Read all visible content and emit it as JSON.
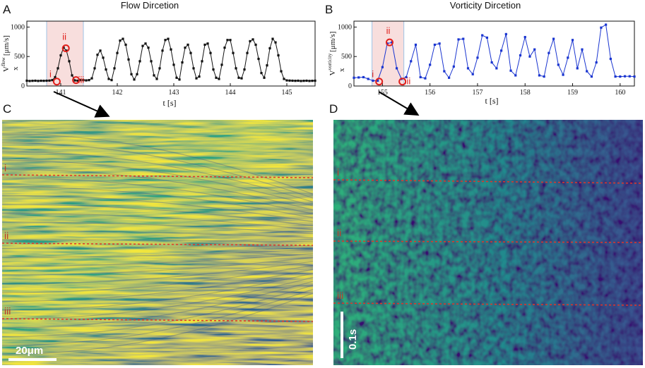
{
  "panel_letters": {
    "a": "A",
    "b": "B",
    "c": "C",
    "d": "D"
  },
  "chart_data": [
    {
      "type": "line",
      "title": "Flow Dircetion",
      "xlabel": "t [s]",
      "ylabel": "V",
      "ylabel_sub": "x",
      "ylabel_sup": "flow",
      "ylabel_unit": "[μm/s]",
      "xlim": [
        140.4,
        145.5
      ],
      "ylim": [
        0,
        1100
      ],
      "xticks": [
        "141",
        "142",
        "143",
        "144",
        "145"
      ],
      "yticks": [
        "0",
        "500",
        "1000"
      ],
      "highlight_window": [
        140.75,
        141.4
      ],
      "color": "#111111",
      "x": [
        140.4,
        140.45,
        140.5,
        140.55,
        140.6,
        140.65,
        140.7,
        140.75,
        140.8,
        140.85,
        140.9,
        140.95,
        141.0,
        141.05,
        141.1,
        141.15,
        141.2,
        141.25,
        141.3,
        141.35,
        141.4,
        141.45,
        141.5,
        141.55,
        141.6,
        141.65,
        141.7,
        141.75,
        141.8,
        141.85,
        141.9,
        141.95,
        142.0,
        142.05,
        142.1,
        142.15,
        142.2,
        142.25,
        142.3,
        142.35,
        142.4,
        142.45,
        142.5,
        142.55,
        142.6,
        142.65,
        142.7,
        142.75,
        142.8,
        142.85,
        142.9,
        142.95,
        143.0,
        143.05,
        143.1,
        143.15,
        143.2,
        143.25,
        143.3,
        143.35,
        143.4,
        143.45,
        143.5,
        143.55,
        143.6,
        143.65,
        143.7,
        143.75,
        143.8,
        143.85,
        143.9,
        143.95,
        144.0,
        144.05,
        144.1,
        144.15,
        144.2,
        144.25,
        144.3,
        144.35,
        144.4,
        144.45,
        144.5,
        144.55,
        144.6,
        144.65,
        144.7,
        144.75,
        144.8,
        144.85,
        144.9,
        144.95,
        145.0,
        145.05,
        145.1,
        145.15,
        145.2,
        145.25,
        145.3,
        145.35,
        145.4,
        145.45,
        145.5
      ],
      "y": [
        90,
        85,
        88,
        90,
        86,
        89,
        88,
        90,
        92,
        100,
        150,
        300,
        520,
        650,
        600,
        420,
        180,
        95,
        90,
        100,
        100,
        95,
        100,
        130,
        300,
        530,
        600,
        480,
        280,
        120,
        100,
        300,
        560,
        770,
        800,
        700,
        450,
        200,
        110,
        200,
        420,
        680,
        720,
        650,
        420,
        180,
        120,
        300,
        600,
        780,
        800,
        620,
        360,
        140,
        110,
        400,
        650,
        700,
        560,
        300,
        130,
        160,
        420,
        700,
        720,
        560,
        280,
        140,
        120,
        360,
        650,
        780,
        780,
        560,
        300,
        140,
        130,
        280,
        560,
        760,
        790,
        700,
        460,
        220,
        140,
        350,
        640,
        800,
        740,
        520,
        250,
        120,
        95,
        92,
        90,
        88,
        90,
        85,
        88,
        90,
        86,
        88,
        90
      ],
      "markers": [
        {
          "label": "i",
          "x": 140.93,
          "y": 75
        },
        {
          "label": "ii",
          "x": 141.09,
          "y": 640
        },
        {
          "label": "iii",
          "x": 141.27,
          "y": 100
        }
      ]
    },
    {
      "type": "line",
      "title": "Vorticity Dircetion",
      "xlabel": "t [s]",
      "ylabel": "V",
      "ylabel_sub": "x",
      "ylabel_sup": "vorticity",
      "ylabel_unit": "[μm/s]",
      "xlim": [
        154.4,
        160.3
      ],
      "ylim": [
        0,
        1100
      ],
      "xticks": [
        "155",
        "156",
        "157",
        "158",
        "159",
        "160"
      ],
      "yticks": [
        "0",
        "500",
        "1000"
      ],
      "highlight_window": [
        154.78,
        155.45
      ],
      "color": "#1a35d0",
      "x": [
        154.4,
        154.5,
        154.6,
        154.7,
        154.8,
        154.9,
        155.0,
        155.1,
        155.2,
        155.3,
        155.4,
        155.5,
        155.6,
        155.7,
        155.8,
        155.9,
        156.0,
        156.1,
        156.2,
        156.3,
        156.4,
        156.5,
        156.6,
        156.7,
        156.8,
        156.9,
        157.0,
        157.1,
        157.2,
        157.3,
        157.4,
        157.5,
        157.6,
        157.7,
        157.8,
        157.9,
        158.0,
        158.1,
        158.2,
        158.3,
        158.4,
        158.5,
        158.6,
        158.7,
        158.8,
        158.9,
        159.0,
        159.1,
        159.2,
        159.3,
        159.4,
        159.5,
        159.6,
        159.7,
        159.8,
        159.9,
        160.0,
        160.1,
        160.2,
        160.3
      ],
      "y": [
        140,
        145,
        150,
        120,
        90,
        90,
        320,
        720,
        740,
        300,
        120,
        150,
        420,
        700,
        150,
        130,
        360,
        700,
        720,
        250,
        140,
        330,
        790,
        800,
        300,
        200,
        480,
        860,
        820,
        400,
        300,
        600,
        880,
        260,
        180,
        520,
        830,
        500,
        620,
        180,
        160,
        560,
        800,
        360,
        190,
        480,
        780,
        300,
        620,
        250,
        160,
        400,
        990,
        1040,
        460,
        160,
        160,
        165,
        165,
        160
      ],
      "markers": [
        {
          "label": "i",
          "x": 154.93,
          "y": 75
        },
        {
          "label": "ii",
          "x": 155.15,
          "y": 740
        },
        {
          "label": "iii",
          "x": 155.42,
          "y": 75
        }
      ]
    }
  ],
  "images": {
    "left": {
      "row_labels": [
        "i",
        "ii",
        "iii"
      ],
      "scale_bar_label": "20μm"
    },
    "right": {
      "row_labels": [
        "i",
        "ii",
        "iii"
      ],
      "scale_bar_label": "0.1s"
    }
  }
}
